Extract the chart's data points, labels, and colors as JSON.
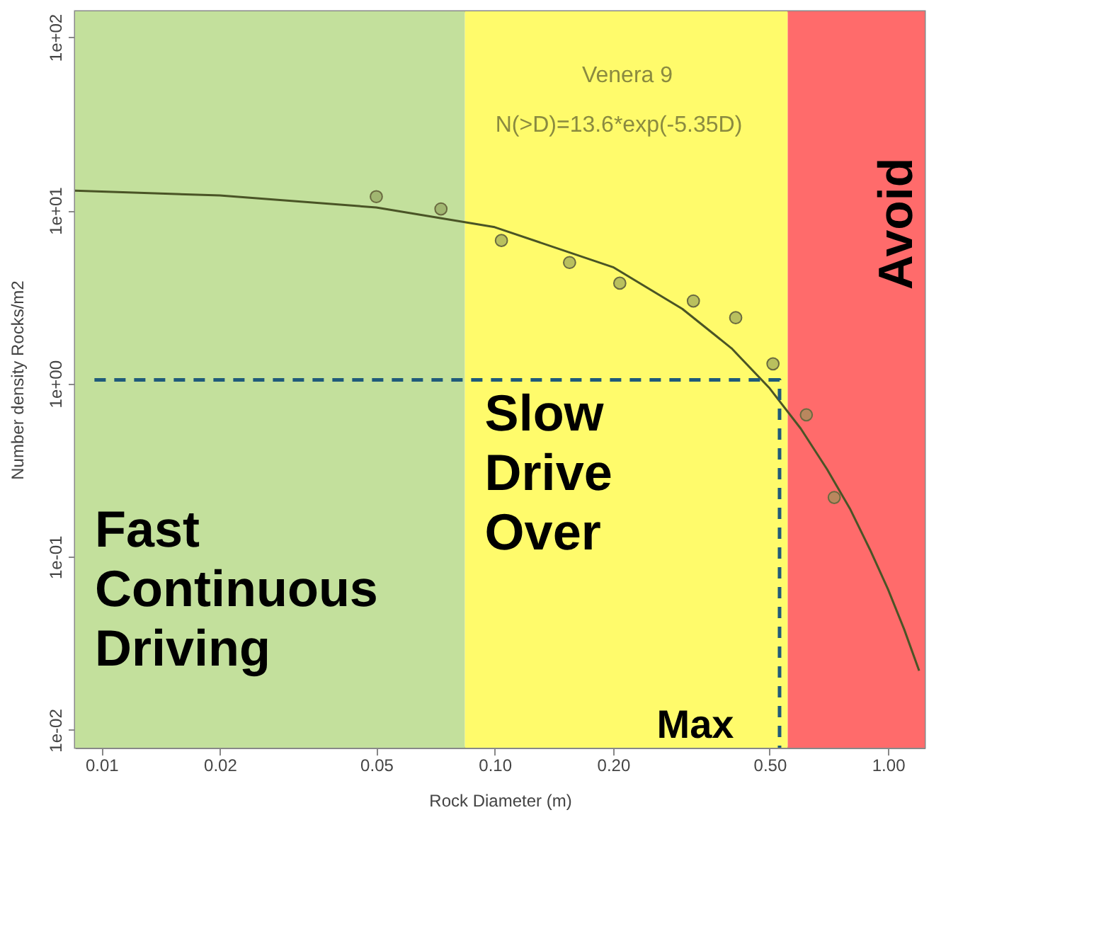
{
  "chart_data": {
    "type": "scatter",
    "xlabel": "Rock Diameter (m)",
    "ylabel": "Number density  Rocks/m2",
    "log": "xy",
    "grid": false,
    "marker": "circle",
    "xlim": [
      0.00857,
      1.24
    ],
    "ylim": [
      0.0079,
      141
    ],
    "xticks": [
      {
        "value": 0.01,
        "label": "0.01"
      },
      {
        "value": 0.02,
        "label": "0.02"
      },
      {
        "value": 0.05,
        "label": "0.05"
      },
      {
        "value": 0.1,
        "label": "0.10"
      },
      {
        "value": 0.2,
        "label": "0.20"
      },
      {
        "value": 0.5,
        "label": "0.50"
      },
      {
        "value": 1,
        "label": "1.00"
      }
    ],
    "yticks": [
      {
        "value": 0.01,
        "label": "1e-02"
      },
      {
        "value": 0.1,
        "label": "1e-01"
      },
      {
        "value": 1,
        "label": "1e+00"
      },
      {
        "value": 10,
        "label": "1e+01"
      },
      {
        "value": 100,
        "label": "1e+02"
      }
    ],
    "bands": [
      {
        "axis": "x",
        "from": 0.00857,
        "to": 0.084,
        "label": "Fast Continuous Driving",
        "color": "#c3e09c"
      },
      {
        "axis": "x",
        "from": 0.084,
        "to": 0.556,
        "label": "Slow Drive Over",
        "color": "#fffb6b"
      },
      {
        "axis": "x",
        "from": 0.556,
        "to": 1.24,
        "label": "Avoid",
        "color": "#ff6b6b"
      }
    ],
    "series": [
      {
        "type": "line",
        "color": "#4a5426",
        "line_style": "solid",
        "marker": "none",
        "x": [
          0.00857,
          0.02,
          0.05,
          0.1,
          0.2,
          0.3,
          0.4,
          0.5,
          0.6,
          0.7,
          0.8,
          0.9,
          1.0,
          1.1,
          1.2
        ],
        "values": [
          13.0,
          12.2,
          10.4,
          8.0,
          4.7,
          2.7,
          1.6,
          0.94,
          0.55,
          0.32,
          0.19,
          0.11,
          0.065,
          0.038,
          0.022
        ]
      },
      {
        "color": "#8a9a55",
        "x": [
          0.05,
          0.073,
          0.104,
          0.155,
          0.208,
          0.32,
          0.41,
          0.51,
          0.62,
          0.73
        ],
        "values": [
          12.0,
          10.2,
          6.7,
          5.0,
          3.8,
          3.0,
          2.4,
          1.3,
          0.66,
          0.22
        ]
      },
      {
        "type": "line",
        "color": "#1f5a7a",
        "line_style": "dashed",
        "marker": "none",
        "x": [
          0.0096,
          0.53,
          0.53
        ],
        "values": [
          1.05,
          1.05,
          0.0079
        ]
      }
    ],
    "annotations": [
      "Venera 9",
      "N(>D)=13.6*exp(-5.35D)",
      "Max"
    ]
  }
}
